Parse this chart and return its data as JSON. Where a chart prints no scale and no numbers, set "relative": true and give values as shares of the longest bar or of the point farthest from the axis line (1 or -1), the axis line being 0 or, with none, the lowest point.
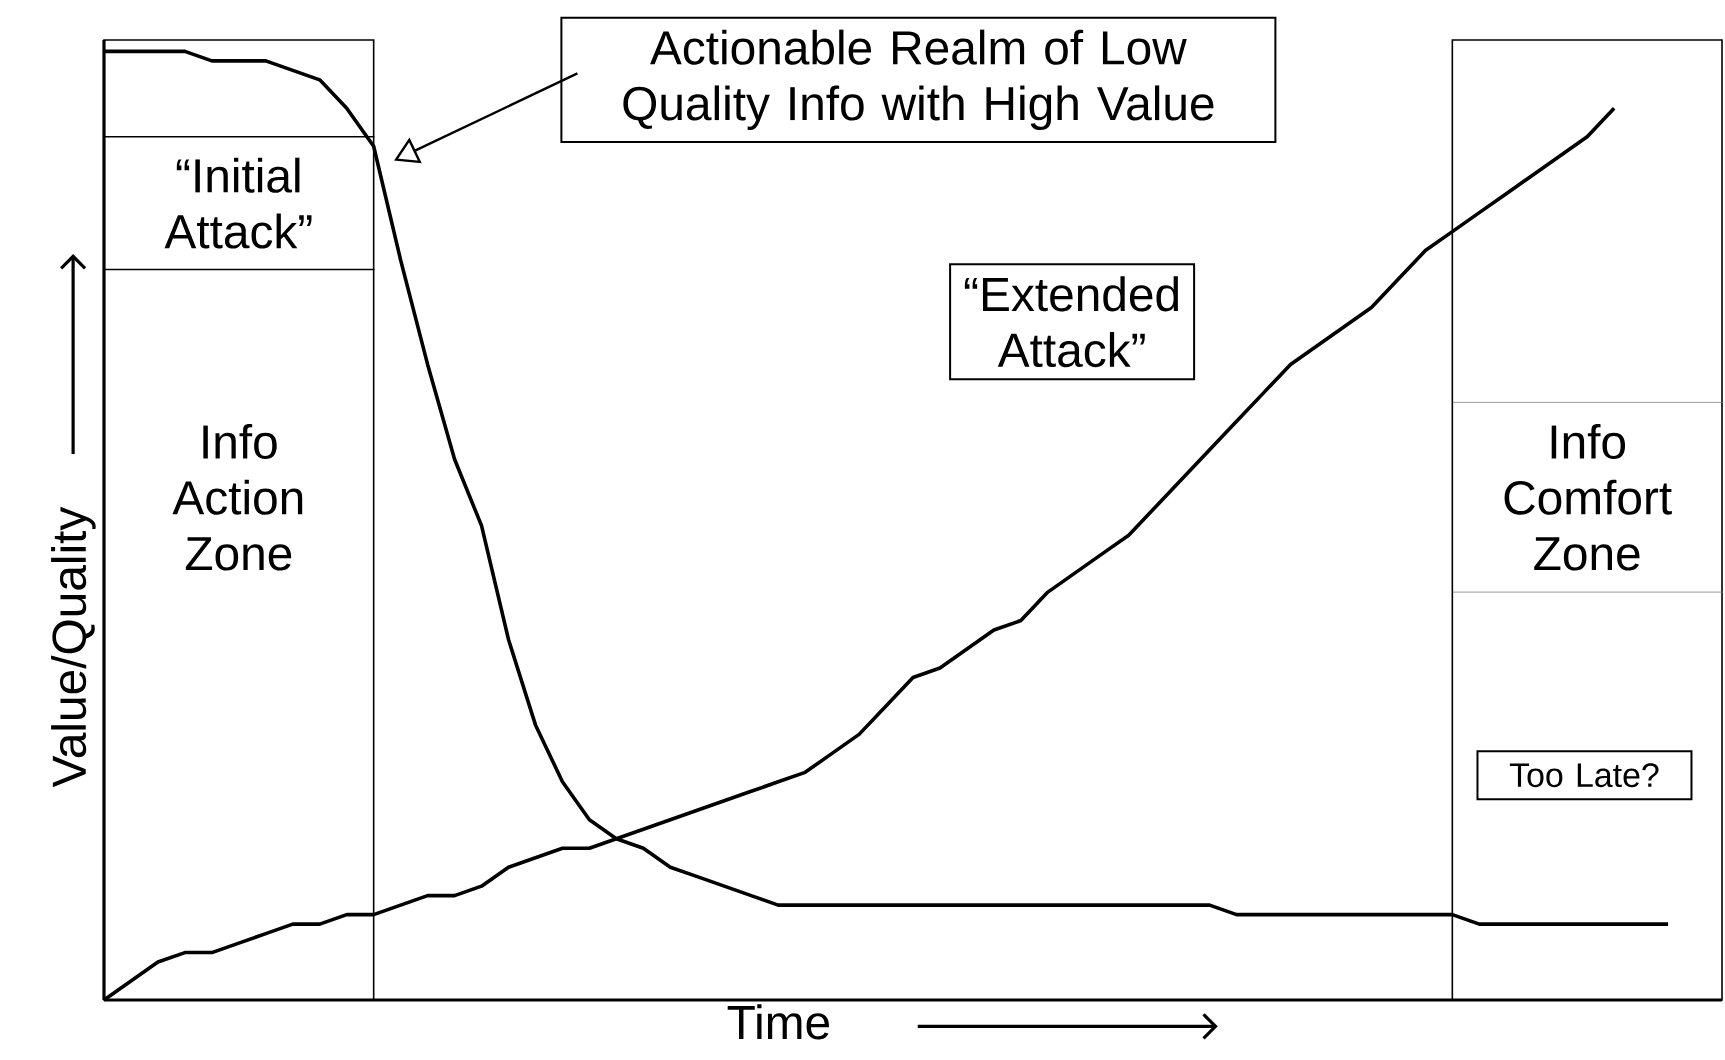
{
  "chart_data": {
    "type": "line",
    "relative": true,
    "xlabel": "Time",
    "ylabel": "Value/Quality",
    "marker": "none",
    "line_style": "solid",
    "categories": [
      null,
      null,
      null,
      null,
      null,
      null,
      null,
      null,
      null,
      null,
      null,
      null,
      null,
      null,
      null,
      null,
      null,
      null,
      null,
      null,
      null,
      null,
      null,
      null,
      null,
      null,
      null,
      null,
      null,
      null,
      null,
      null,
      null,
      null,
      null,
      null,
      null,
      null,
      null,
      null,
      null,
      null,
      null,
      null,
      null,
      null,
      null,
      null,
      null,
      null,
      null,
      null,
      null,
      null,
      null,
      null,
      null,
      null,
      null,
      null,
      null
    ],
    "series": [
      {
        "color": "#000000",
        "values": [
          1.0,
          1.0,
          1.0,
          1.0,
          0.99,
          0.99,
          0.99,
          0.98,
          0.97,
          0.94,
          0.9,
          0.78,
          0.67,
          0.57,
          0.5,
          0.38,
          0.29,
          0.23,
          0.19,
          0.17,
          0.16,
          0.14,
          0.13,
          0.12,
          0.11,
          0.1,
          0.1,
          0.1,
          0.1,
          0.1,
          0.1,
          0.1,
          0.1,
          0.1,
          0.1,
          0.1,
          0.1,
          0.1,
          0.1,
          0.1,
          0.1,
          0.1,
          0.09,
          0.09,
          0.09,
          0.09,
          0.09,
          0.09,
          0.09,
          0.09,
          0.09,
          0.08,
          0.08,
          0.08,
          0.08,
          0.08,
          0.08,
          0.08,
          0.08,
          null,
          null
        ]
      },
      {
        "color": "#000000",
        "values": [
          0.0,
          0.02,
          0.04,
          0.05,
          0.05,
          0.06,
          0.07,
          0.08,
          0.08,
          0.09,
          0.09,
          0.1,
          0.11,
          0.11,
          0.12,
          0.14,
          0.15,
          0.16,
          0.16,
          0.17,
          0.18,
          0.19,
          0.2,
          0.21,
          0.22,
          0.23,
          0.24,
          0.26,
          0.28,
          0.31,
          0.34,
          0.35,
          0.37,
          0.39,
          0.4,
          0.43,
          0.45,
          0.47,
          0.49,
          0.52,
          0.55,
          0.58,
          0.61,
          0.64,
          0.67,
          0.69,
          0.71,
          0.73,
          0.76,
          0.79,
          0.81,
          0.83,
          0.85,
          0.87,
          0.89,
          0.91,
          0.94,
          null,
          null,
          null,
          null
        ]
      }
    ],
    "annotations": [
      "Actionable Realm of Low Quality Info with High Value",
      "“Initial Attack”",
      "“Extended Attack”",
      "Too Late?",
      "Info Action Zone",
      "Info Comfort Zone"
    ]
  }
}
